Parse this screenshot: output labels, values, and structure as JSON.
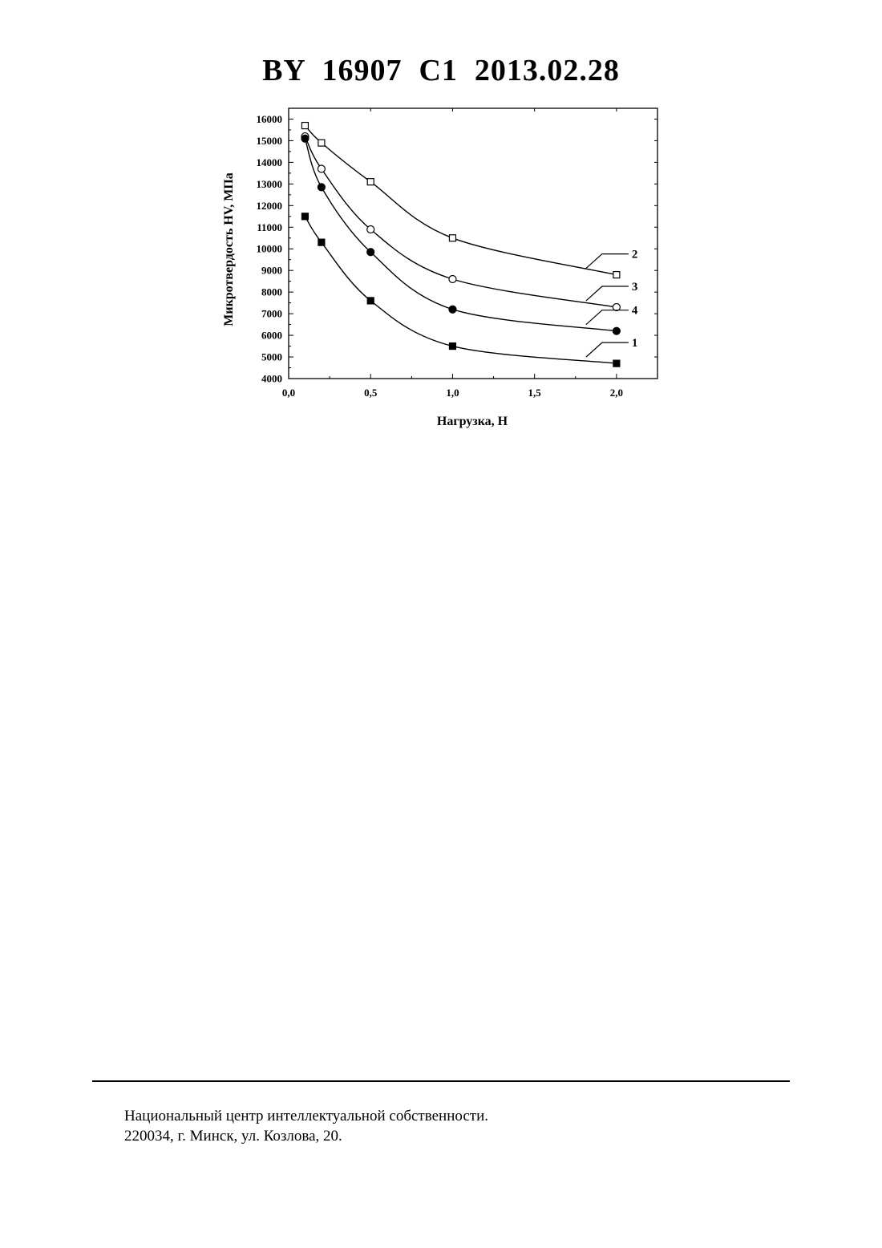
{
  "document": {
    "header": "BY  16907  C1  2013.02.28",
    "footer_line1": "Национальный центр интеллектуальной собственности.",
    "footer_line2": "220034, г. Минск, ул. Козлова, 20."
  },
  "chart_data": {
    "type": "line",
    "title": "",
    "xlabel": "Нагрузка, Н",
    "ylabel": "Микротвердость HV, МПа",
    "xlim": [
      0.0,
      2.25
    ],
    "ylim": [
      4000,
      16500
    ],
    "x_ticks": [
      "0,0",
      "0,5",
      "1,0",
      "1,5",
      "2,0"
    ],
    "x_tick_values": [
      0.0,
      0.5,
      1.0,
      1.5,
      2.0
    ],
    "y_ticks": [
      4000,
      5000,
      6000,
      7000,
      8000,
      9000,
      10000,
      11000,
      12000,
      13000,
      14000,
      15000,
      16000
    ],
    "grid": false,
    "legend": "curve number labels at right",
    "series": [
      {
        "name": "1",
        "marker": "filled-square",
        "x": [
          0.1,
          0.2,
          0.5,
          1.0,
          2.0
        ],
        "y": [
          11500,
          10300,
          7600,
          5500,
          4700
        ]
      },
      {
        "name": "2",
        "marker": "open-square",
        "x": [
          0.1,
          0.2,
          0.5,
          1.0,
          2.0
        ],
        "y": [
          15700,
          14900,
          13100,
          10500,
          8800
        ]
      },
      {
        "name": "3",
        "marker": "open-circle",
        "x": [
          0.1,
          0.2,
          0.5,
          1.0,
          2.0
        ],
        "y": [
          15200,
          13700,
          10900,
          8600,
          7300
        ]
      },
      {
        "name": "4",
        "marker": "filled-circle",
        "x": [
          0.1,
          0.2,
          0.5,
          1.0,
          2.0
        ],
        "y": [
          15100,
          12850,
          9850,
          7200,
          6200
        ]
      }
    ]
  }
}
